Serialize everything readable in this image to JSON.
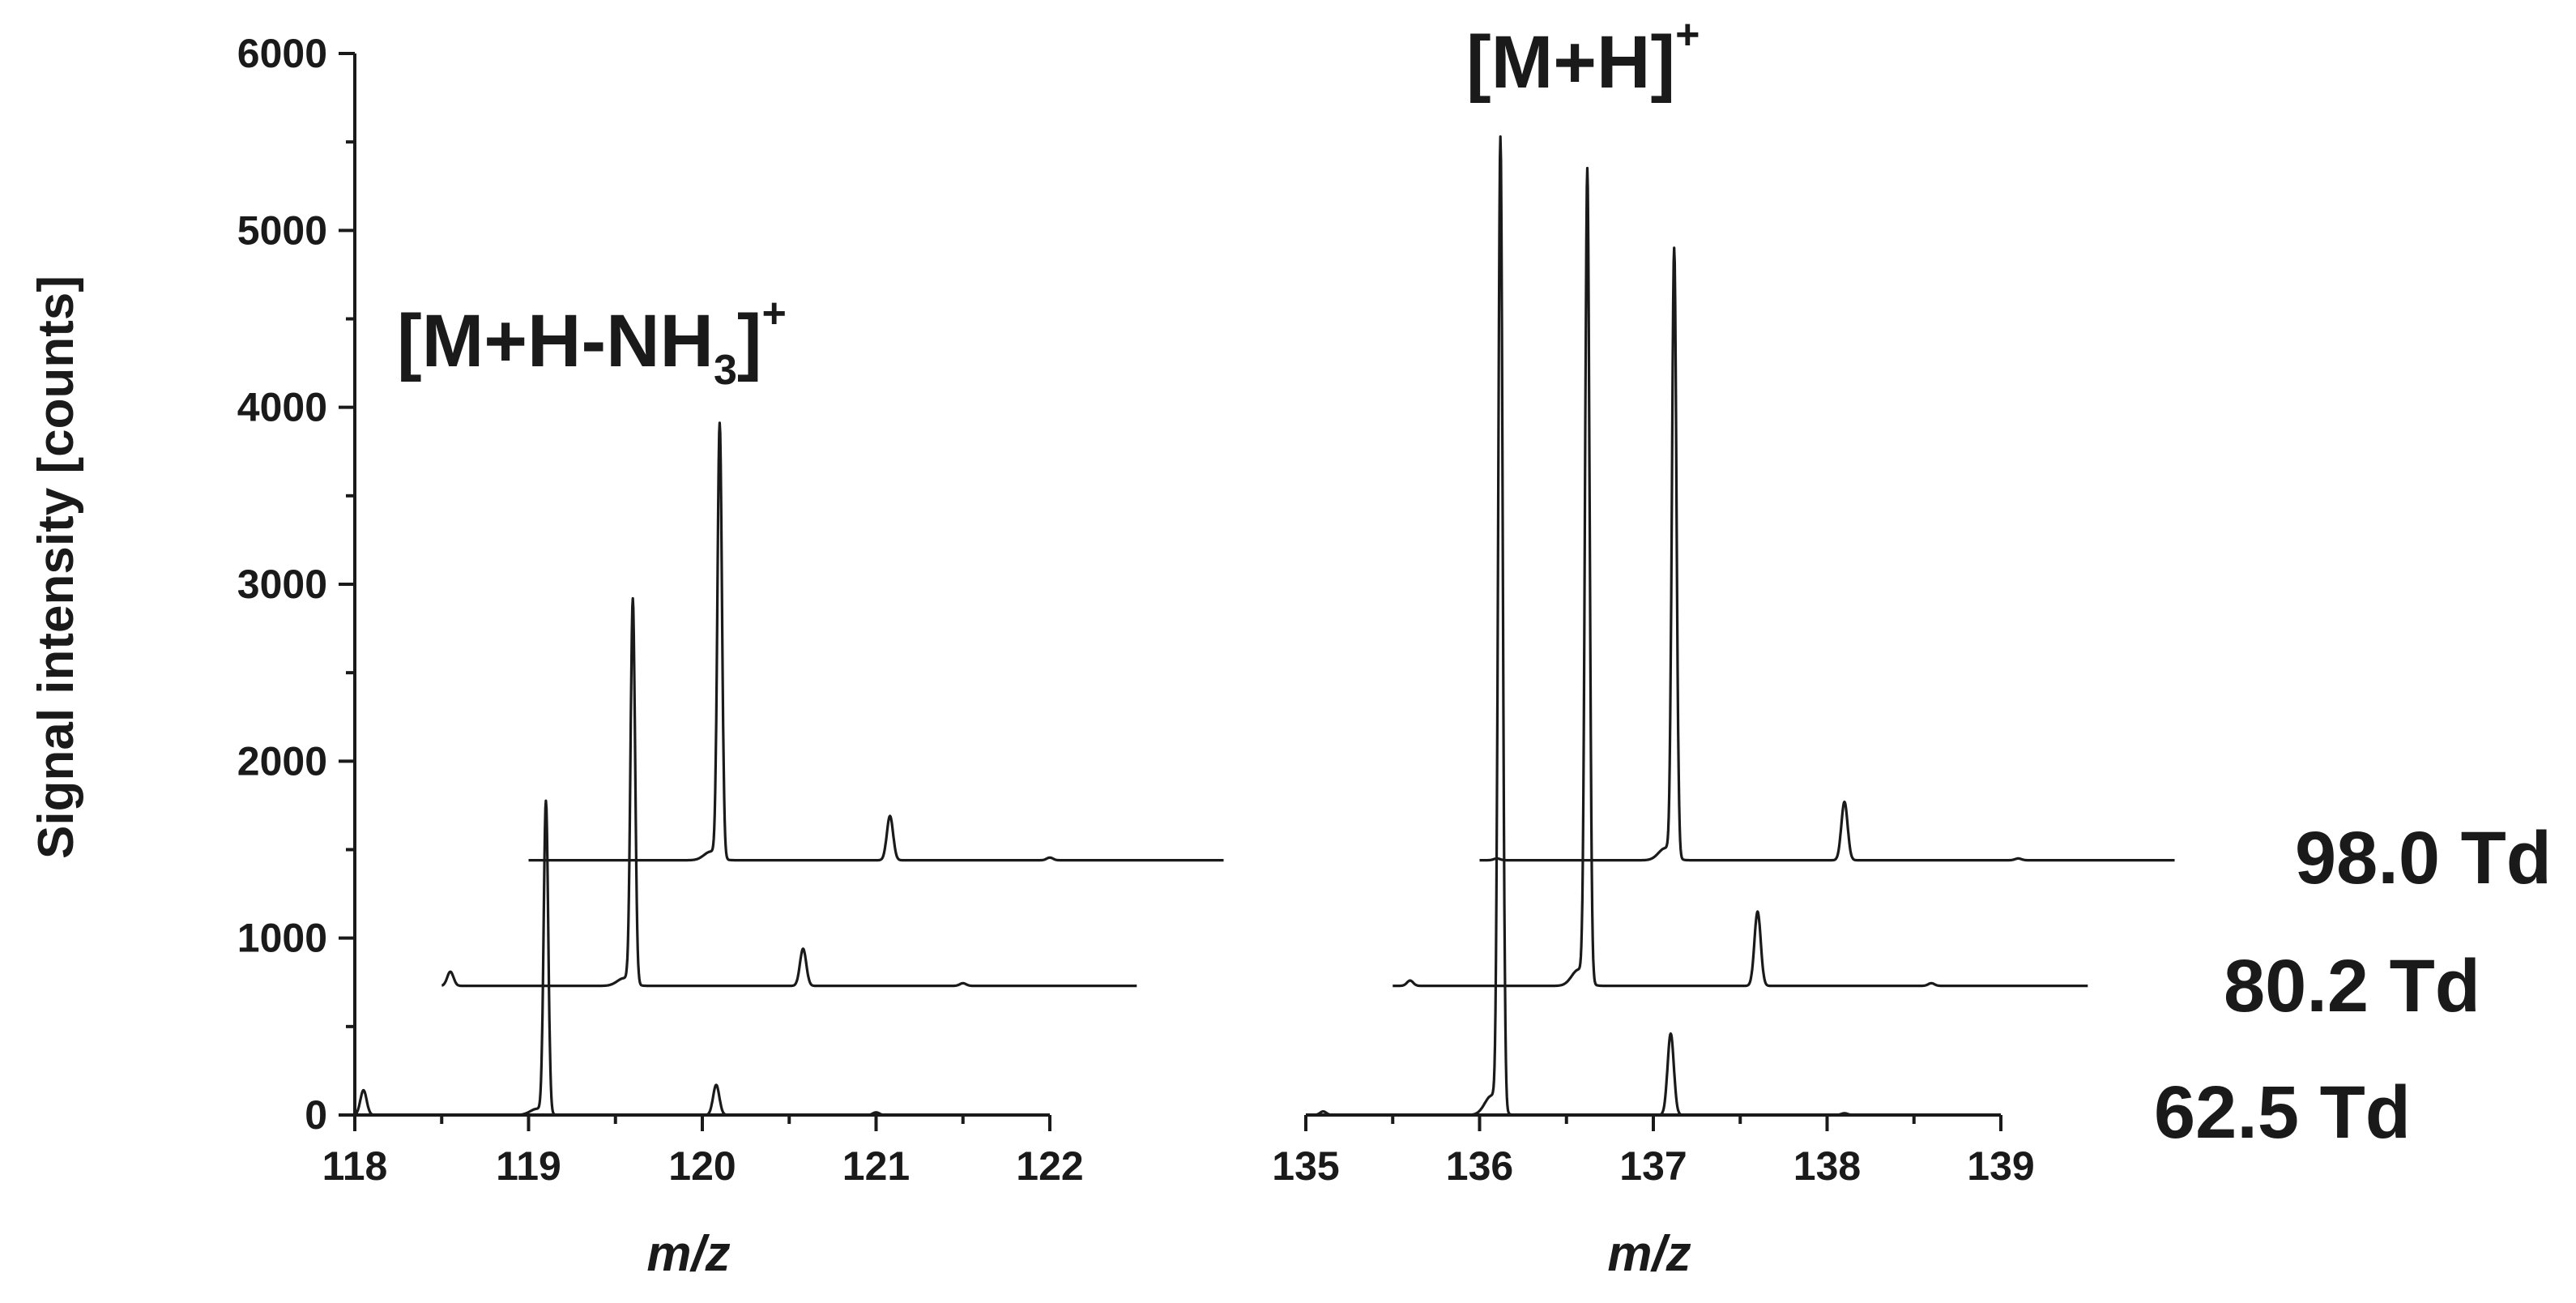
{
  "chart_data": {
    "type": "line",
    "ylabel": "Signal intensity [counts]",
    "xlabel": "m/z",
    "ylim": [
      0,
      6000
    ],
    "yticks": [
      "0",
      "1000",
      "2000",
      "3000",
      "4000",
      "5000",
      "6000"
    ],
    "panels": [
      {
        "id": "left",
        "xlim": [
          118,
          122
        ],
        "xticks": [
          "118",
          "119",
          "120",
          "121",
          "122"
        ],
        "annotation": {
          "main": "[M+H-NH",
          "sub": "3",
          "close": "]",
          "sup": "+"
        }
      },
      {
        "id": "right",
        "xlim": [
          135,
          139
        ],
        "xticks": [
          "135",
          "136",
          "137",
          "138",
          "139"
        ],
        "annotation": {
          "main": "[M+H]",
          "sup": "+"
        }
      }
    ],
    "series": [
      {
        "name": "62.5 Td",
        "x_offset": 0,
        "baseline": 0,
        "left": {
          "range": [
            118,
            122
          ],
          "peaks": [
            [
              118.05,
              140
            ],
            [
              119.1,
              1760
            ],
            [
              120.08,
              170
            ],
            [
              121.0,
              15
            ]
          ]
        },
        "right": {
          "range": [
            135,
            139
          ],
          "peaks": [
            [
              135.1,
              20
            ],
            [
              136.12,
              5480
            ],
            [
              137.1,
              460
            ],
            [
              138.1,
              10
            ]
          ]
        }
      },
      {
        "name": "80.2 Td",
        "x_offset": 0.5,
        "baseline": 730,
        "left": {
          "range": [
            118,
            122
          ],
          "peaks": [
            [
              118.05,
              80
            ],
            [
              119.1,
              2170
            ],
            [
              120.08,
              210
            ],
            [
              121.0,
              15
            ]
          ]
        },
        "right": {
          "range": [
            135,
            139
          ],
          "peaks": [
            [
              135.1,
              30
            ],
            [
              136.12,
              4580
            ],
            [
              137.1,
              420
            ],
            [
              138.1,
              15
            ]
          ]
        }
      },
      {
        "name": "98.0 Td",
        "x_offset": 1.0,
        "baseline": 1440,
        "left": {
          "range": [
            118,
            122
          ],
          "peaks": [
            [
              119.1,
              2450
            ],
            [
              120.08,
              250
            ],
            [
              121.0,
              15
            ]
          ]
        },
        "right": {
          "range": [
            135,
            139
          ],
          "peaks": [
            [
              135.1,
              10
            ],
            [
              136.12,
              3430
            ],
            [
              137.1,
              330
            ],
            [
              138.1,
              10
            ]
          ]
        }
      }
    ],
    "grid": false,
    "legend": "none"
  }
}
